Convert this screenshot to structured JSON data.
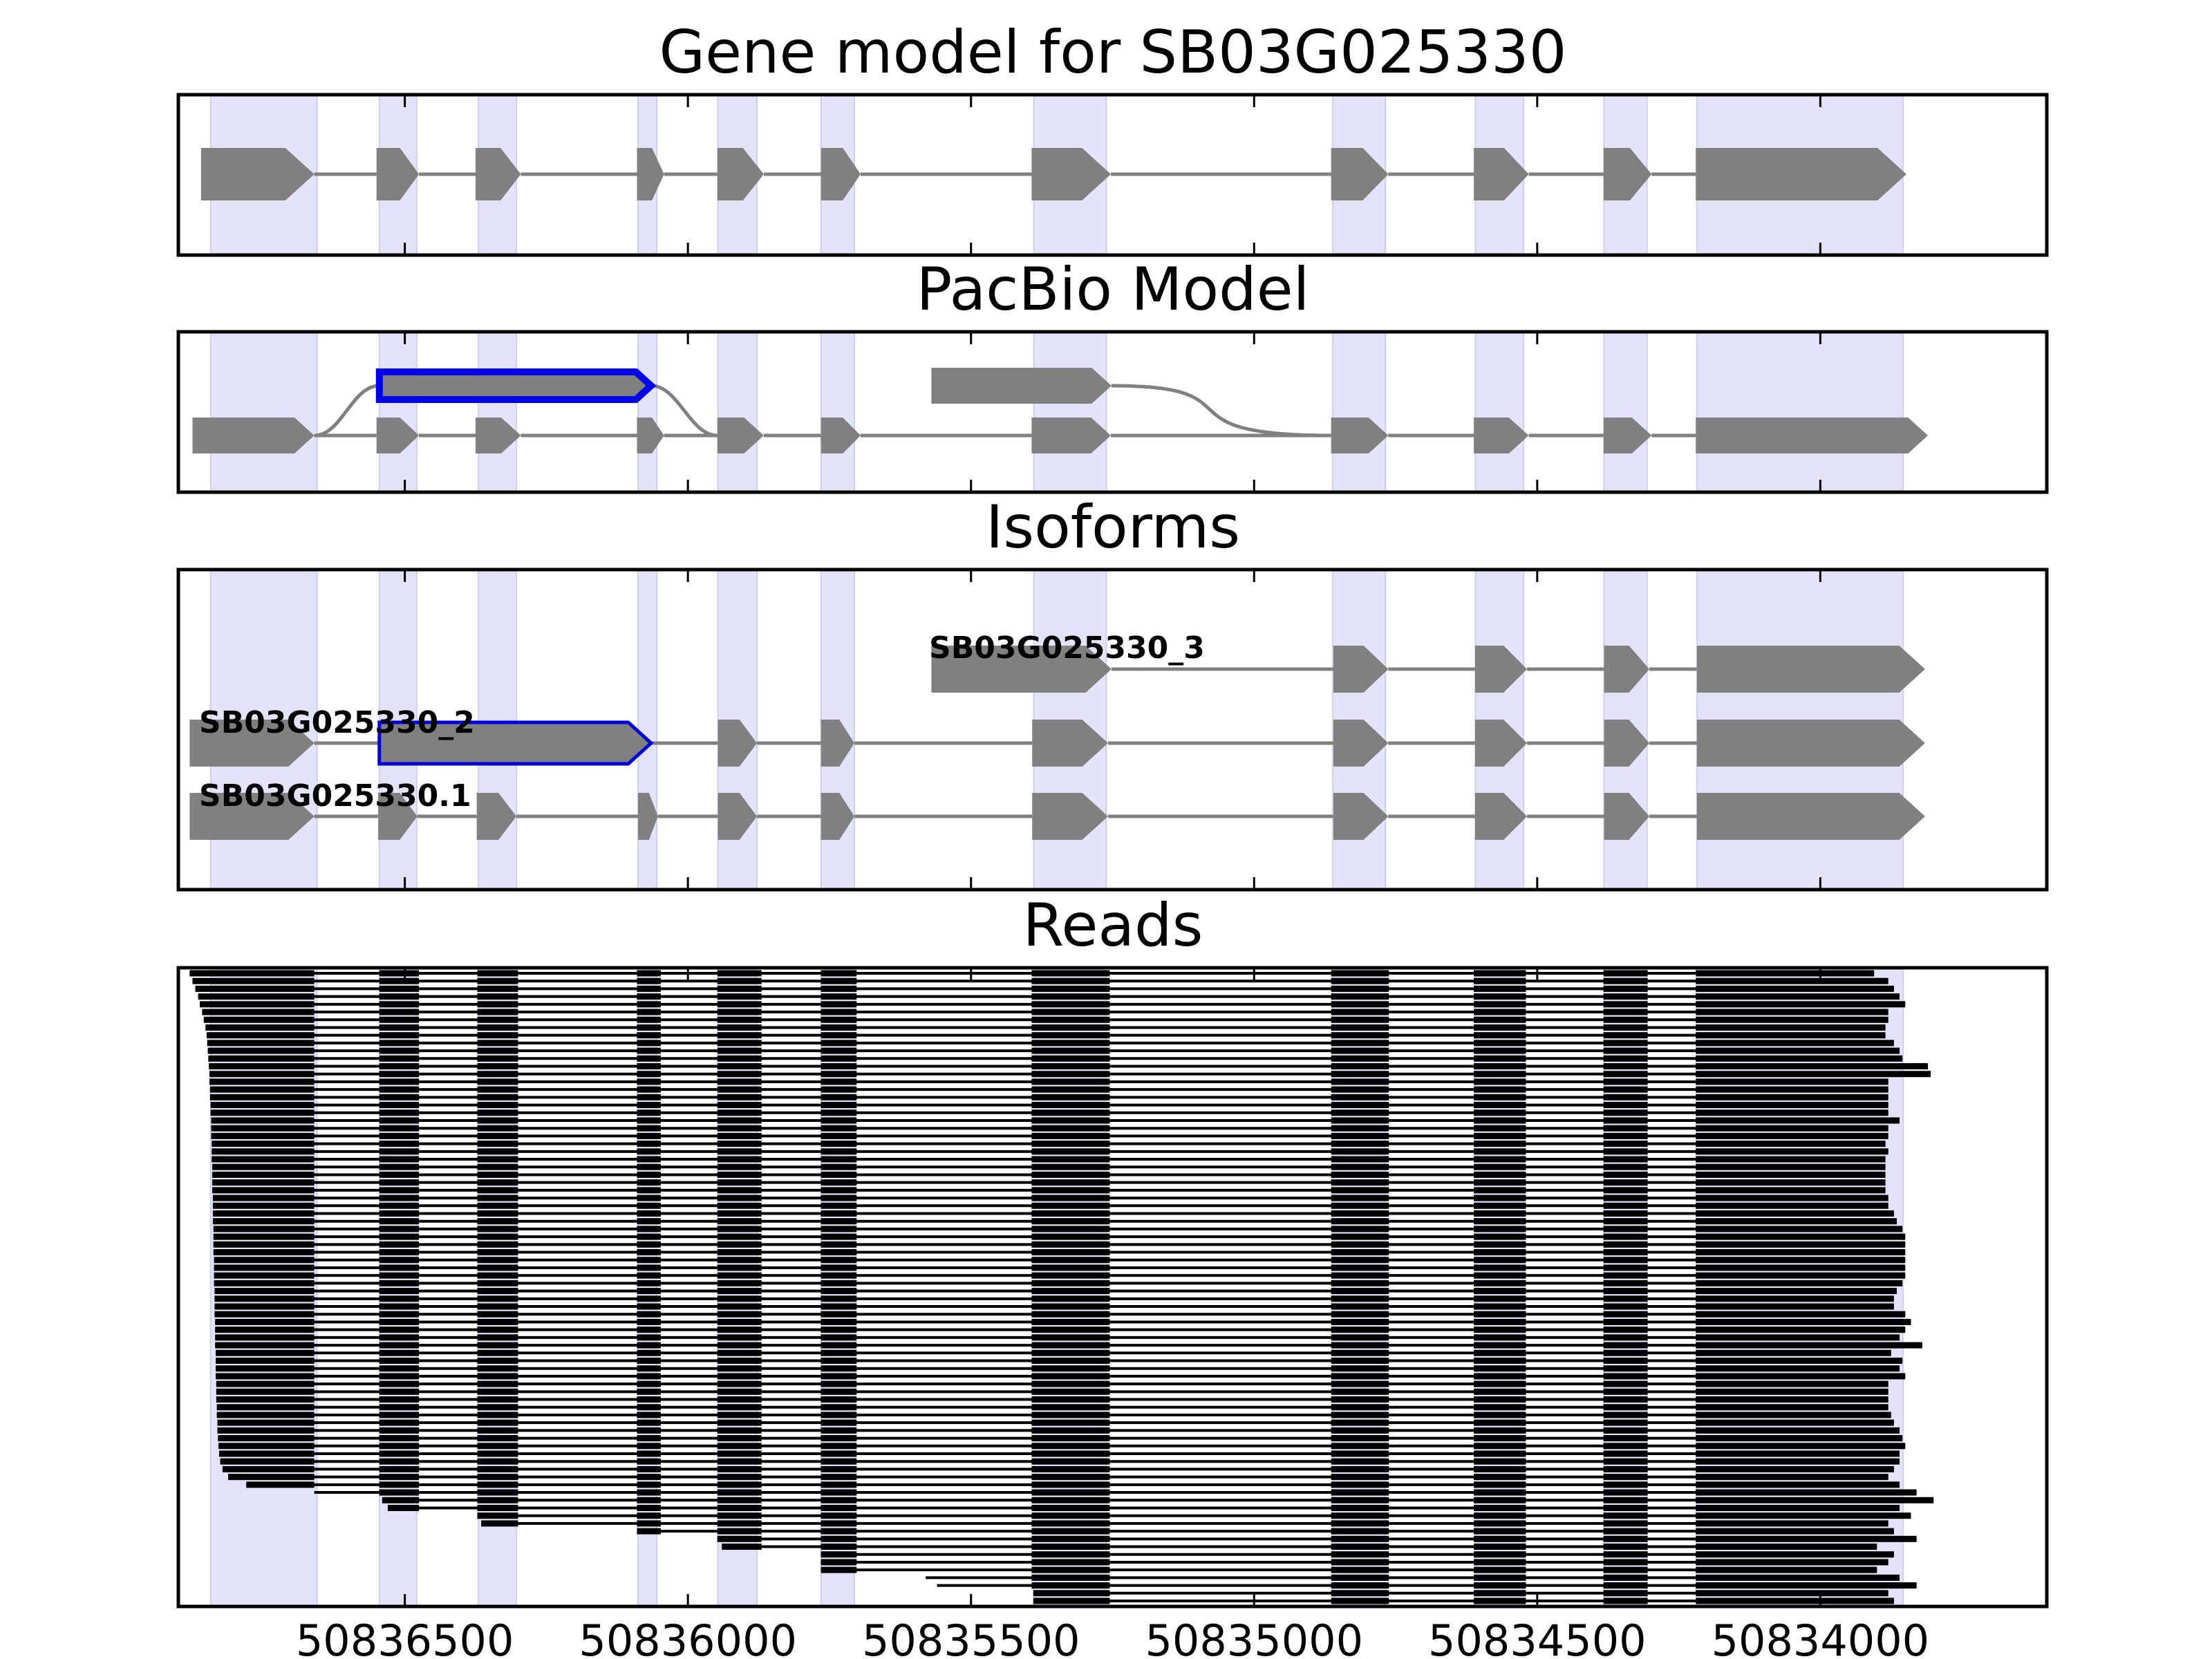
{
  "chart_data": {
    "type": "gene-track",
    "axis": {
      "xlim": [
        50836900,
        50833600
      ],
      "ticks": [
        50836500,
        50836000,
        50835500,
        50835000,
        50834500,
        50834000
      ],
      "tick_labels": [
        "50836500",
        "50836000",
        "50835500",
        "50835000",
        "50834500",
        "50834000"
      ]
    },
    "exon_bands": [
      [
        50836843,
        50836655
      ],
      [
        50836545,
        50836479
      ],
      [
        50836370,
        50836303
      ],
      [
        50836088,
        50836055
      ],
      [
        50835947,
        50835878
      ],
      [
        50835765,
        50835706
      ],
      [
        50835389,
        50835261
      ],
      [
        50834861,
        50834768
      ],
      [
        50834609,
        50834524
      ],
      [
        50834382,
        50834306
      ],
      [
        50834218,
        50833854
      ]
    ],
    "panels": [
      {
        "title": "Gene model for SB03G025330",
        "gene": {
          "exons": [
            [
              50836860,
              50836660
            ],
            [
              50836550,
              50836475
            ],
            [
              50836375,
              50836295
            ],
            [
              50836090,
              50836042
            ],
            [
              50835948,
              50835866
            ],
            [
              50835765,
              50835695
            ],
            [
              50835393,
              50835253
            ],
            [
              50834864,
              50834763
            ],
            [
              50834612,
              50834515
            ],
            [
              50834383,
              50834298
            ],
            [
              50834220,
              50833848
            ]
          ]
        }
      },
      {
        "title": "PacBio Model",
        "main": {
          "exons": [
            [
              50836875,
              50836660
            ],
            [
              50836550,
              50836475
            ],
            [
              50836375,
              50836295
            ],
            [
              50836090,
              50836042
            ],
            [
              50835948,
              50835866
            ],
            [
              50835765,
              50835695
            ],
            [
              50835393,
              50835253
            ],
            [
              50834864,
              50834763
            ],
            [
              50834612,
              50834515
            ],
            [
              50834383,
              50834298
            ],
            [
              50834220,
              50833810
            ]
          ]
        },
        "alternatives": [
          {
            "start": 50836545,
            "end": 50836065,
            "highlight": true
          },
          {
            "start": 50835570,
            "end": 50835252,
            "highlight": false
          }
        ]
      },
      {
        "title": "Isoforms",
        "isoforms": [
          {
            "name": "SB03G025330_3",
            "exons": [
              [
                50835570,
                50835252
              ],
              [
                50834860,
                50834763
              ],
              [
                50834610,
                50834518
              ],
              [
                50834382,
                50834302
              ],
              [
                50834218,
                50833815
              ]
            ]
          },
          {
            "name": "SB03G025330_2",
            "exons": [
              [
                50836880,
                50836660
              ],
              [
                50836545,
                50836065
              ],
              [
                50835947,
                50835878
              ],
              [
                50835765,
                50835706
              ],
              [
                50835392,
                50835258
              ],
              [
                50834860,
                50834763
              ],
              [
                50834610,
                50834518
              ],
              [
                50834382,
                50834302
              ],
              [
                50834218,
                50833815
              ]
            ],
            "highlight_exon": 1
          },
          {
            "name": "SB03G025330.1",
            "exons": [
              [
                50836880,
                50836660
              ],
              [
                50836547,
                50836478
              ],
              [
                50836373,
                50836303
              ],
              [
                50836088,
                50836053
              ],
              [
                50835947,
                50835878
              ],
              [
                50835765,
                50835706
              ],
              [
                50835392,
                50835258
              ],
              [
                50834860,
                50834763
              ],
              [
                50834610,
                50834518
              ],
              [
                50834382,
                50834302
              ],
              [
                50834218,
                50833815
              ]
            ]
          }
        ]
      },
      {
        "title": "Reads",
        "read_count": 82,
        "read_exon_blocks": [
          [
            50836545,
            50836475
          ],
          [
            50836372,
            50836300
          ],
          [
            50836090,
            50836048
          ],
          [
            50835948,
            50835870
          ],
          [
            50835765,
            50835702
          ],
          [
            50835393,
            50835255
          ],
          [
            50834864,
            50834762
          ],
          [
            50834612,
            50834520
          ],
          [
            50834383,
            50834305
          ]
        ],
        "read_starts": [
          50836880,
          50836875,
          50836870,
          50836865,
          50836862,
          50836858,
          50836855,
          50836852,
          50836850,
          50836849,
          50836848,
          50836847,
          50836846,
          50836845,
          50836845,
          50836844,
          50836844,
          50836843,
          50836843,
          50836842,
          50836842,
          50836842,
          50836841,
          50836841,
          50836841,
          50836840,
          50836840,
          50836840,
          50836840,
          50836839,
          50836839,
          50836839,
          50836839,
          50836838,
          50836838,
          50836838,
          50836838,
          50836837,
          50836837,
          50836837,
          50836837,
          50836836,
          50836836,
          50836836,
          50836836,
          50836835,
          50836835,
          50836835,
          50836835,
          50836834,
          50836834,
          50836834,
          50836834,
          50836833,
          50836833,
          50836833,
          50836832,
          50836832,
          50836831,
          50836831,
          50836830,
          50836829,
          50836828,
          50836826,
          50836822,
          50836812,
          50836780,
          50836660,
          50836540,
          50836530,
          50836372,
          50836365,
          50836090,
          50835948,
          50835940,
          50835765,
          50835765,
          50835765,
          50835580,
          50835560,
          50835390,
          50835390
        ],
        "read_ends": [
          50833905,
          50833880,
          50833870,
          50833860,
          50833850,
          50833880,
          50833880,
          50833885,
          50833885,
          50833870,
          50833860,
          50833855,
          50833810,
          50833805,
          50833880,
          50833880,
          50833880,
          50833880,
          50833880,
          50833860,
          50833880,
          50833880,
          50833885,
          50833880,
          50833885,
          50833885,
          50833885,
          50833885,
          50833885,
          50833880,
          50833880,
          50833870,
          50833865,
          50833855,
          50833850,
          50833850,
          50833850,
          50833850,
          50833850,
          50833850,
          50833855,
          50833865,
          50833870,
          50833870,
          50833850,
          50833840,
          50833850,
          50833860,
          50833820,
          50833875,
          50833855,
          50833860,
          50833850,
          50833880,
          50833880,
          50833880,
          50833880,
          50833875,
          50833870,
          50833860,
          50833855,
          50833850,
          50833860,
          50833860,
          50833870,
          50833880,
          50833860,
          50833830,
          50833800,
          50833860,
          50833840,
          50833880,
          50833870,
          50833830,
          50833900,
          50833870,
          50833880,
          50833900,
          50833860,
          50833830,
          50833880,
          50833870
        ]
      }
    ]
  }
}
